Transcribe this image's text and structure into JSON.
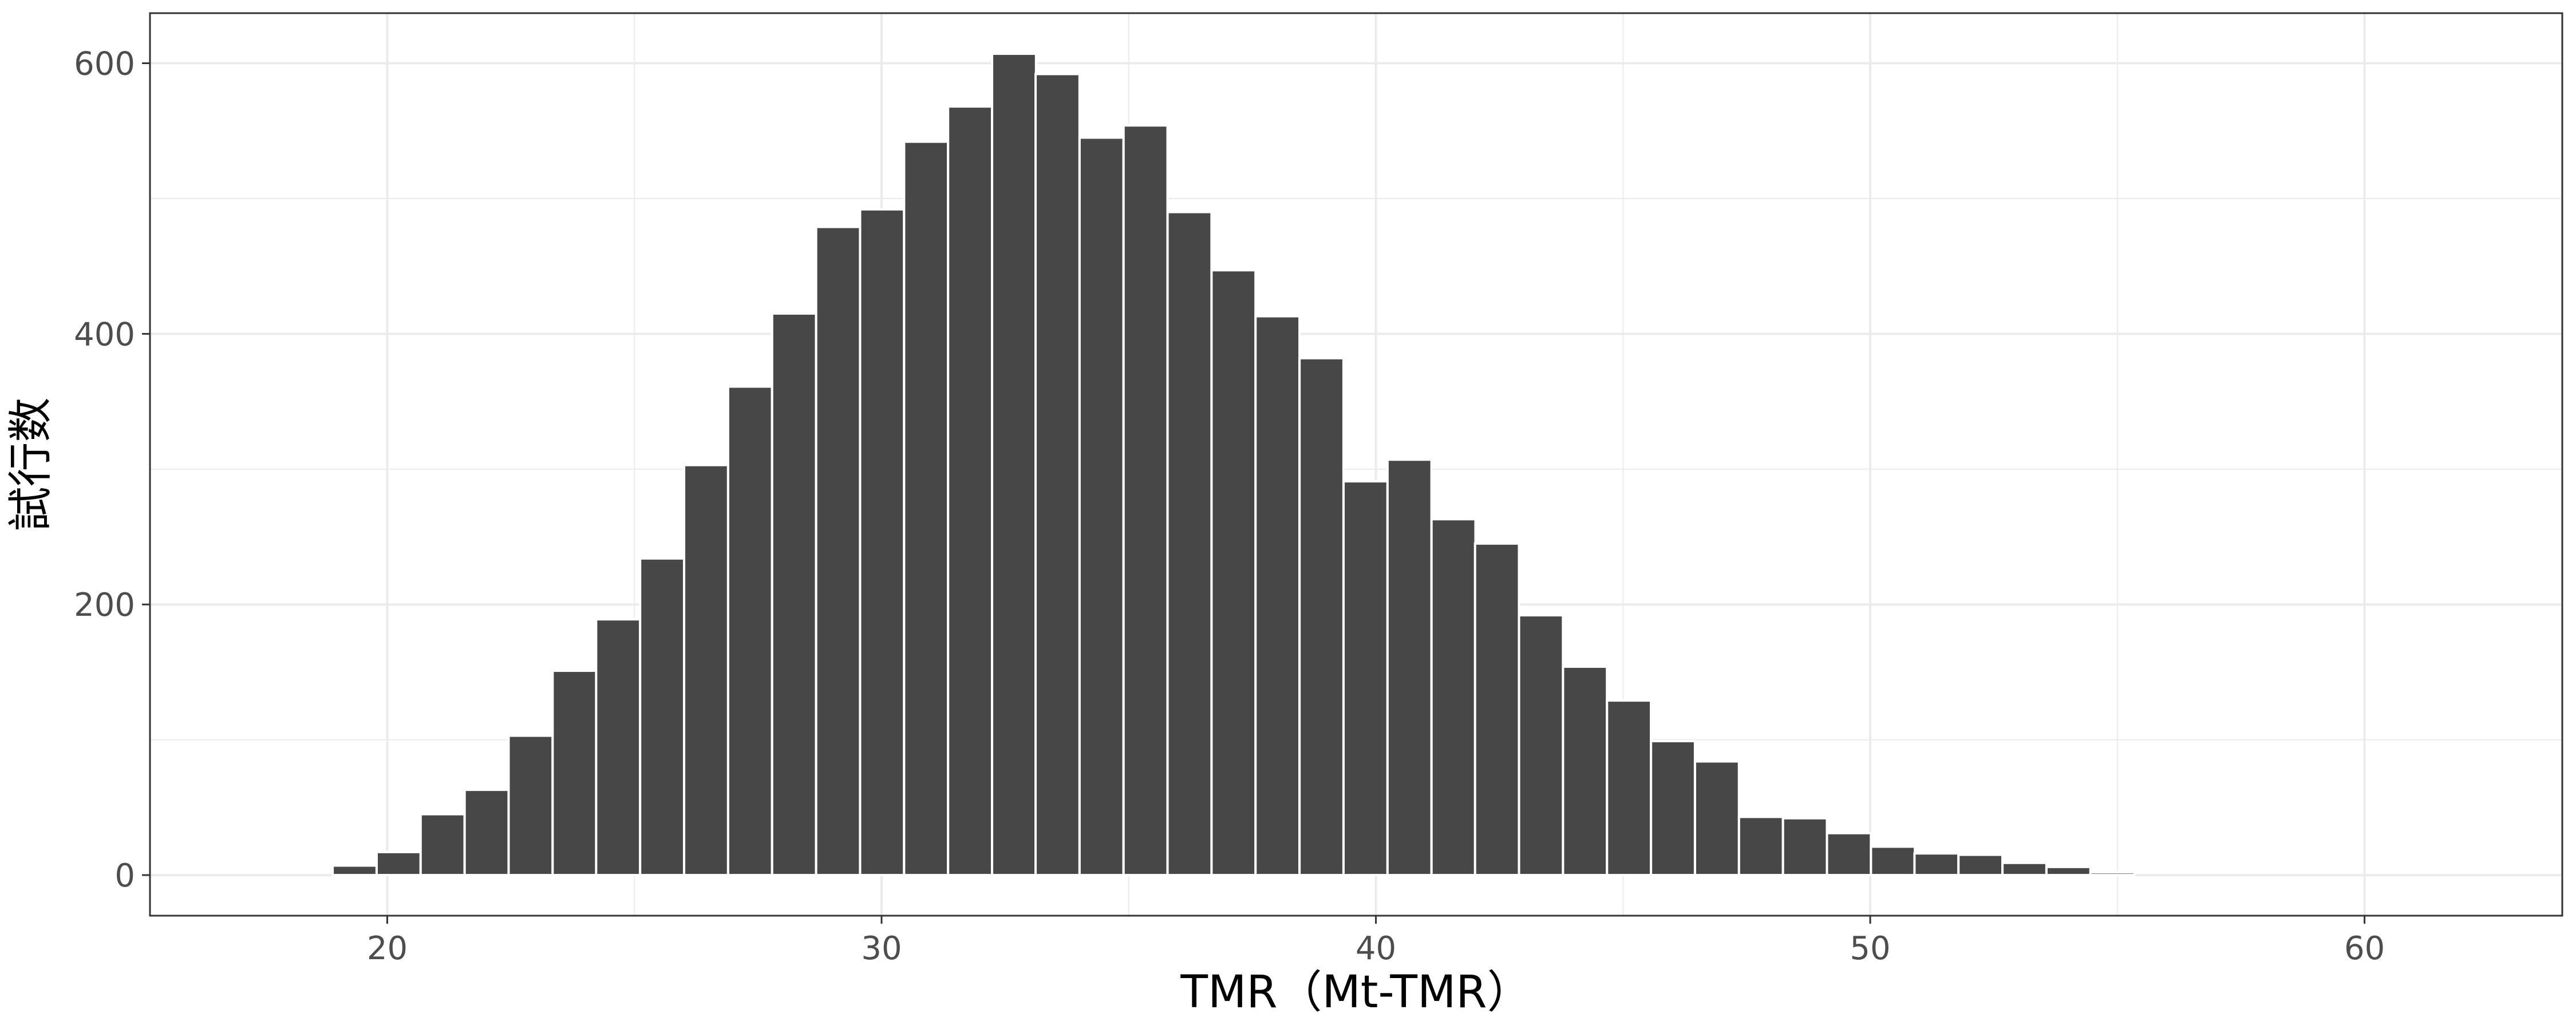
{
  "chart_data": {
    "type": "bar",
    "title": "",
    "xlabel": "TMR（Mt-TMR）",
    "ylabel": "試行数",
    "xlim": [
      15.2,
      64.0
    ],
    "ylim": [
      -30,
      637
    ],
    "x_ticks": [
      20,
      30,
      40,
      50,
      60
    ],
    "x_tick_labels": [
      "20",
      "30",
      "40",
      "50",
      "60"
    ],
    "y_ticks": [
      0,
      200,
      400,
      600
    ],
    "y_tick_labels": [
      "0",
      "200",
      "400",
      "600"
    ],
    "grid": true,
    "bin_width": 0.889,
    "bin_centers": [
      17.56,
      18.45,
      19.34,
      20.23,
      21.12,
      22.01,
      22.9,
      23.79,
      24.67,
      25.56,
      26.45,
      27.34,
      28.23,
      29.12,
      30.01,
      30.9,
      31.79,
      32.68,
      33.56,
      34.45,
      35.34,
      36.23,
      37.12,
      38.01,
      38.9,
      39.79,
      40.68,
      41.57,
      42.45,
      43.34,
      44.23,
      45.12,
      46.01,
      46.9,
      47.79,
      48.68,
      49.57,
      50.46,
      51.34,
      52.23,
      53.12,
      54.01,
      54.9,
      55.79,
      56.68,
      57.57,
      58.46,
      59.35,
      60.24,
      61.12
    ],
    "values": [
      0,
      0,
      7,
      17,
      45,
      63,
      103,
      151,
      189,
      234,
      303,
      361,
      415,
      479,
      492,
      542,
      568,
      607,
      592,
      545,
      554,
      490,
      447,
      413,
      382,
      291,
      307,
      263,
      245,
      192,
      154,
      129,
      99,
      84,
      43,
      42,
      31,
      21,
      16,
      15,
      9,
      6,
      2,
      0,
      0,
      0,
      0,
      0,
      0,
      0
    ],
    "bar_color": "#474747",
    "bar_outline": "#ffffff",
    "panel_border": "#333333",
    "grid_color": "#ebebeb"
  }
}
